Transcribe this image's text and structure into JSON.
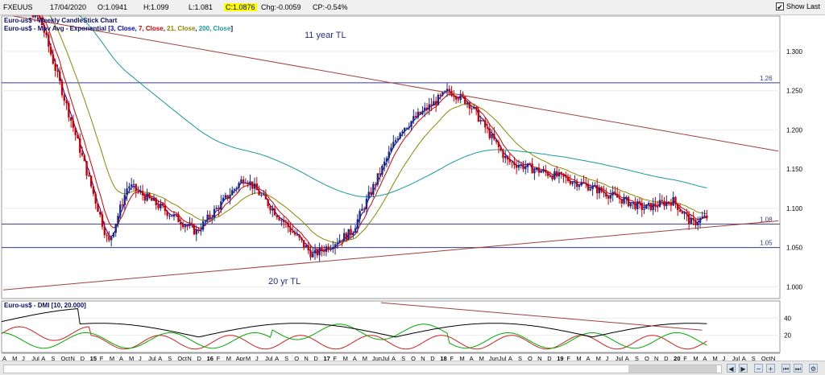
{
  "header": {
    "symbol": "FXEUUS",
    "date": "17/04/2020",
    "open": "O:1.0941",
    "high": "H:1.099",
    "low": "L:1.081",
    "close": "C:1.0876",
    "change": "Chg:-0.0059",
    "change_pct": "CP:-0.54%",
    "show_last_label": "Show Last",
    "show_last_checked": true
  },
  "legend": {
    "line1": "Euro-us$ - Weekly CandleStick Chart",
    "line2_prefix": "Euro-us$ - Mov Avg - Exponential [",
    "ma1": "3, Close",
    "ma2": "7, Close",
    "ma3": "21, Close",
    "ma4": "200, Close",
    "ma_colors": {
      "ma1": "#0000cc",
      "ma2": "#cc0000",
      "ma3": "#888800",
      "ma4": "#1a9a9a"
    },
    "dmi": "Euro-us$ - DMI [10, 20.000]"
  },
  "annotations": {
    "trendline_11yr": "11 year TL",
    "trendline_20yr": "20 yr TL",
    "level_126": "1.26",
    "level_108": "1.08",
    "level_105": "1.05"
  },
  "price_axis_labels": [
    "1.300",
    "1.250",
    "1.200",
    "1.150",
    "1.100",
    "1.050",
    "1.000"
  ],
  "dmi_axis_labels": [
    "40",
    "20"
  ],
  "date_axis_labels": [
    "A",
    "M",
    "J",
    "Jul",
    "A",
    "S",
    "Oct",
    "N",
    "D",
    "15",
    "F",
    "M",
    "A",
    "M",
    "J",
    "Jul",
    "A",
    "S",
    "Oct",
    "N",
    "D",
    "16",
    "F",
    "M",
    "Apr",
    "M",
    "J",
    "Jul",
    "A",
    "S",
    "O",
    "N",
    "D",
    "17",
    "F",
    "M",
    "A",
    "M",
    "Jun",
    "Jul",
    "A",
    "S",
    "O",
    "N",
    "D",
    "18",
    "F",
    "M",
    "A",
    "M",
    "Jun",
    "Jul",
    "A",
    "S",
    "O",
    "N",
    "D",
    "19",
    "F",
    "M",
    "A",
    "M",
    "J",
    "Jul",
    "A",
    "S",
    "O",
    "N",
    "D",
    "20",
    "F",
    "M",
    "A",
    "M",
    "J",
    "Jul",
    "A",
    "S",
    "Oct",
    "N",
    "Dec"
  ],
  "colors": {
    "candle_up": "#1a2a8a",
    "candle_down": "#cc0000",
    "trendline": "#a04040",
    "level_line": "#3a3a8a",
    "plus_di": "#00aa00",
    "minus_di": "#cc2222",
    "adx": "#000000"
  },
  "chart_data": {
    "type": "candlestick",
    "title": "Euro-us$ - Weekly CandleStick Chart",
    "ylim": [
      0.985,
      1.345
    ],
    "x_range": [
      "2014-04",
      "2020-12"
    ],
    "key_points": {
      "dates": [
        "2014-04",
        "2014-08",
        "2015-03",
        "2015-05",
        "2015-12",
        "2016-05",
        "2016-12",
        "2017-04",
        "2017-09",
        "2018-02",
        "2018-04",
        "2018-08",
        "2019-04",
        "2019-10",
        "2020-01",
        "2020-03",
        "2020-04"
      ],
      "values": [
        1.385,
        1.34,
        1.055,
        1.13,
        1.07,
        1.14,
        1.04,
        1.07,
        1.2,
        1.25,
        1.235,
        1.16,
        1.13,
        1.1,
        1.11,
        1.08,
        1.0876
      ]
    },
    "series": [
      {
        "name": "3, Close",
        "type": "ema"
      },
      {
        "name": "7, Close",
        "type": "ema"
      },
      {
        "name": "21, Close",
        "type": "ema"
      },
      {
        "name": "200, Close",
        "type": "ema"
      }
    ],
    "horizontal_levels": [
      1.26,
      1.08,
      1.05
    ],
    "last_close": 1.0876,
    "dmi": {
      "period": 10,
      "threshold": 20.0,
      "ylim": [
        0,
        60
      ],
      "ticks": [
        20,
        40
      ]
    }
  }
}
